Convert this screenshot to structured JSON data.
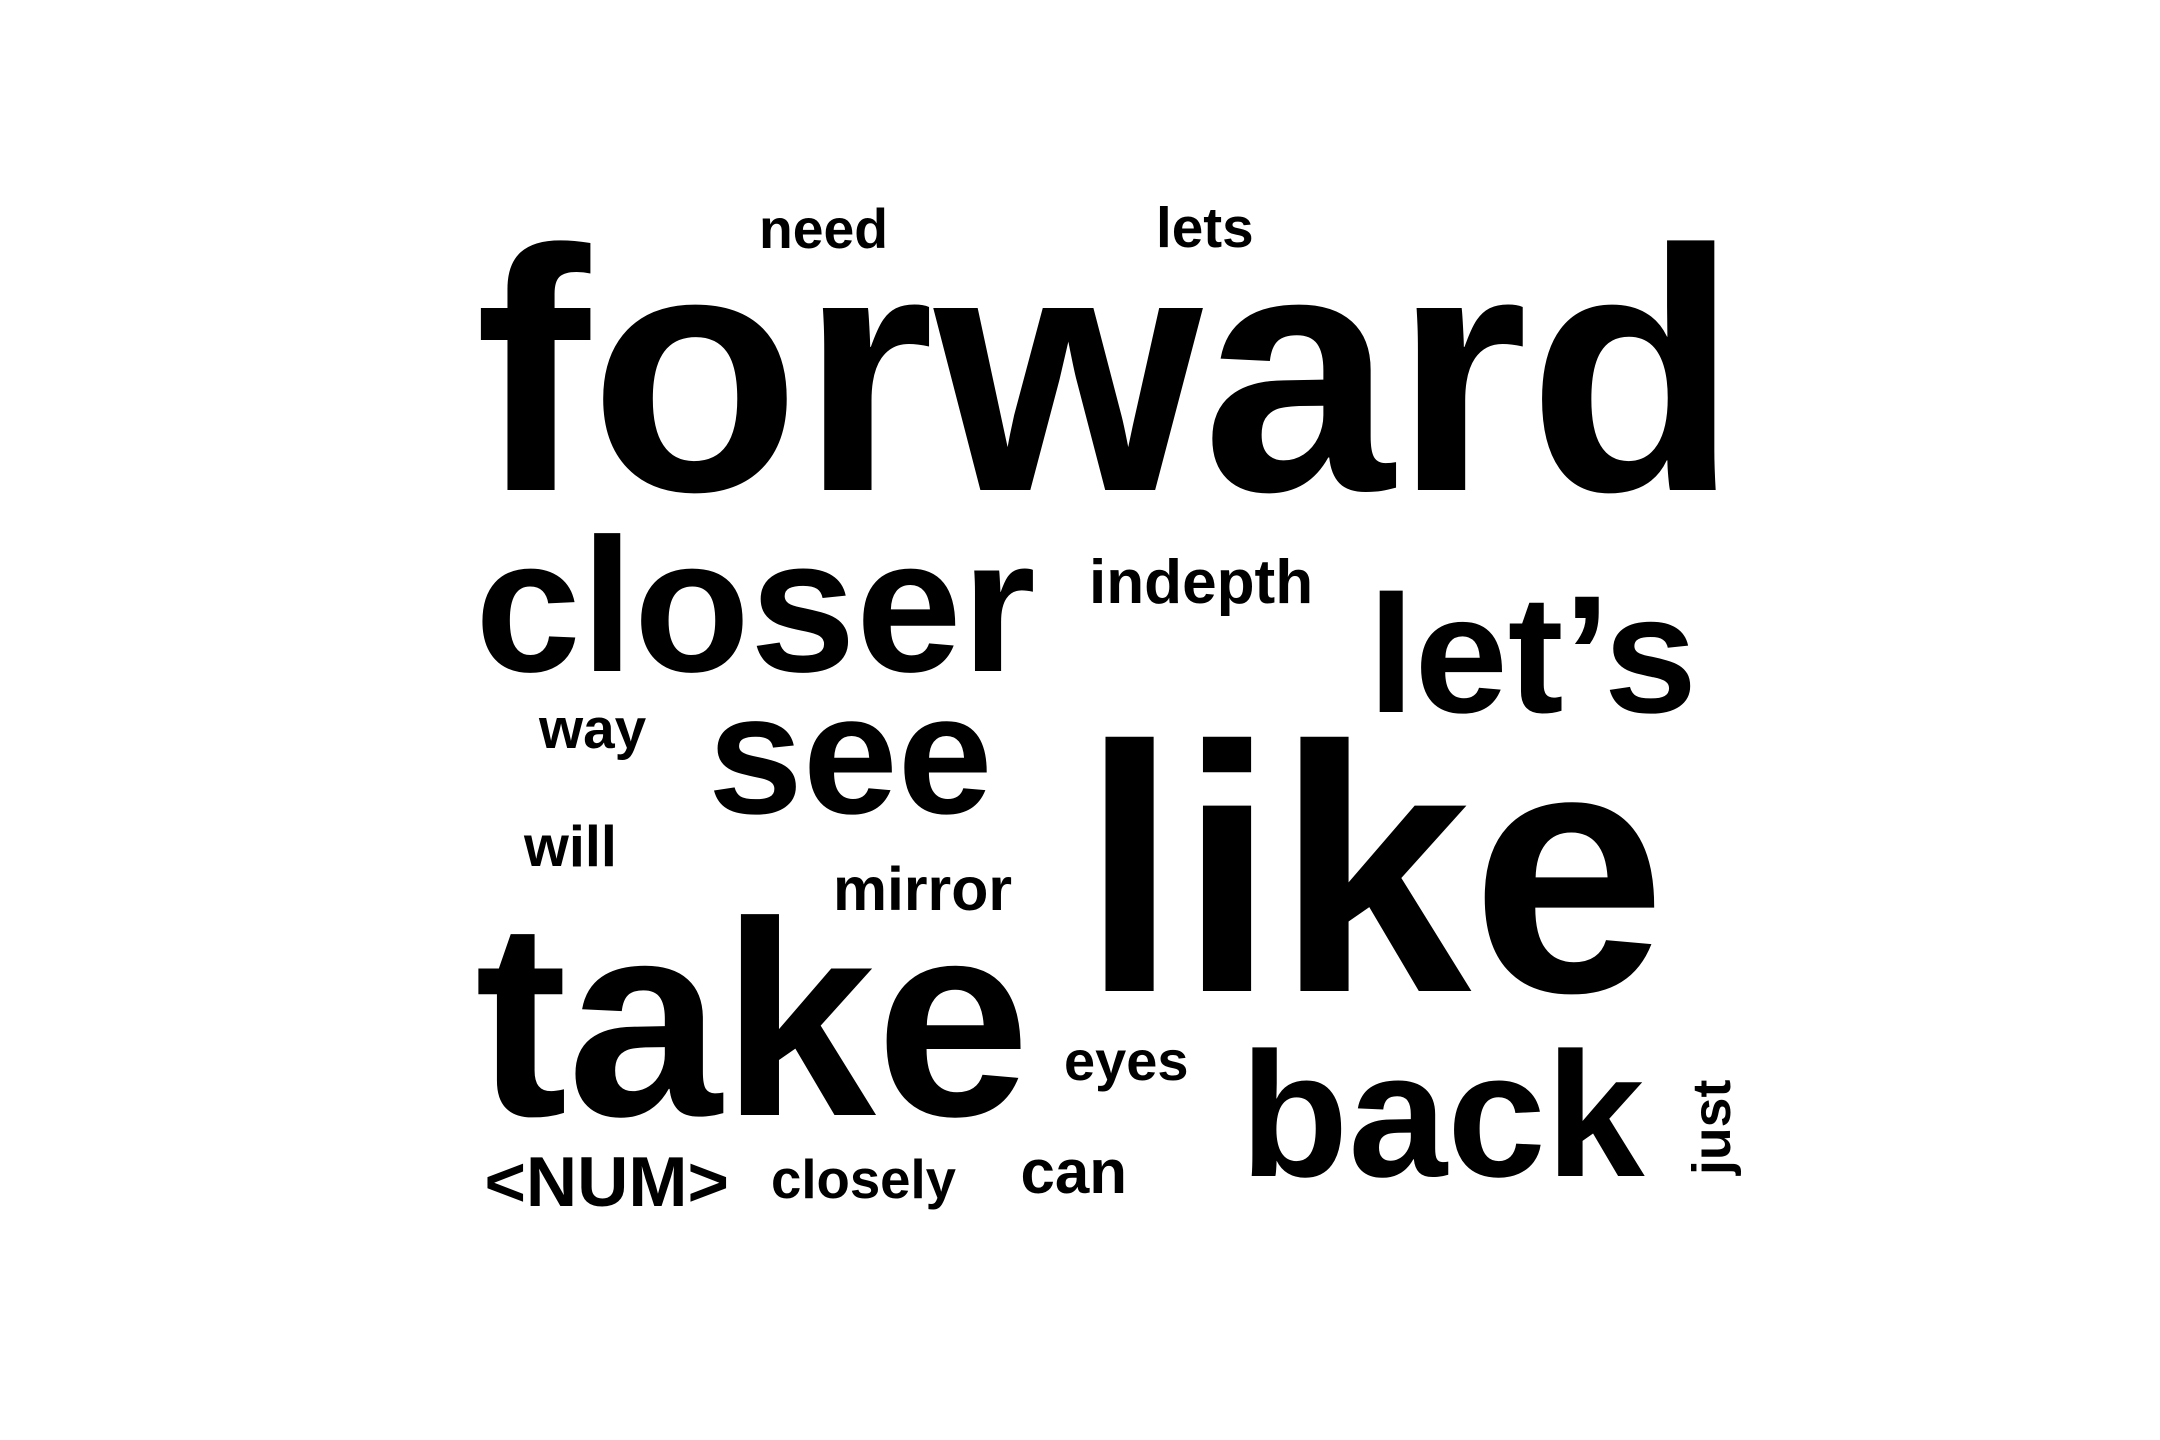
{
  "text_color": "#000000",
  "background_color": "#ffffff",
  "words": {
    "forward": "forward",
    "like": "like",
    "take": "take",
    "closer": "closer",
    "lets_apostrophe": "let’s",
    "back": "back",
    "see": "see",
    "indepth": "indepth",
    "mirror": "mirror",
    "eyes": "eyes",
    "need": "need",
    "lets": "lets",
    "way": "way",
    "will": "will",
    "num": "<NUM>",
    "closely": "closely",
    "can": "can",
    "just": "just"
  }
}
